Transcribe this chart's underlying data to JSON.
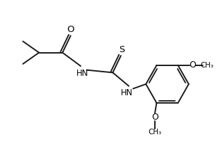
{
  "background_color": "#ffffff",
  "line_color": "#1a1a1a",
  "line_width": 1.4,
  "text_color": "#000000",
  "font_size": 8.5,
  "figsize": [
    3.11,
    2.2
  ],
  "dpi": 100,
  "xlim": [
    0,
    10
  ],
  "ylim": [
    0,
    7
  ]
}
